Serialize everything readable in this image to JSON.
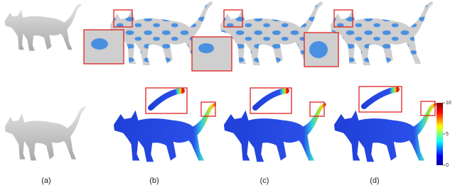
{
  "panel_labels": [
    "(a)",
    "(b)",
    "(c)",
    "(d)"
  ],
  "colorbar": {
    "lim": [
      0,
      10
    ],
    "ticks": [
      0,
      5,
      10
    ]
  }
}
